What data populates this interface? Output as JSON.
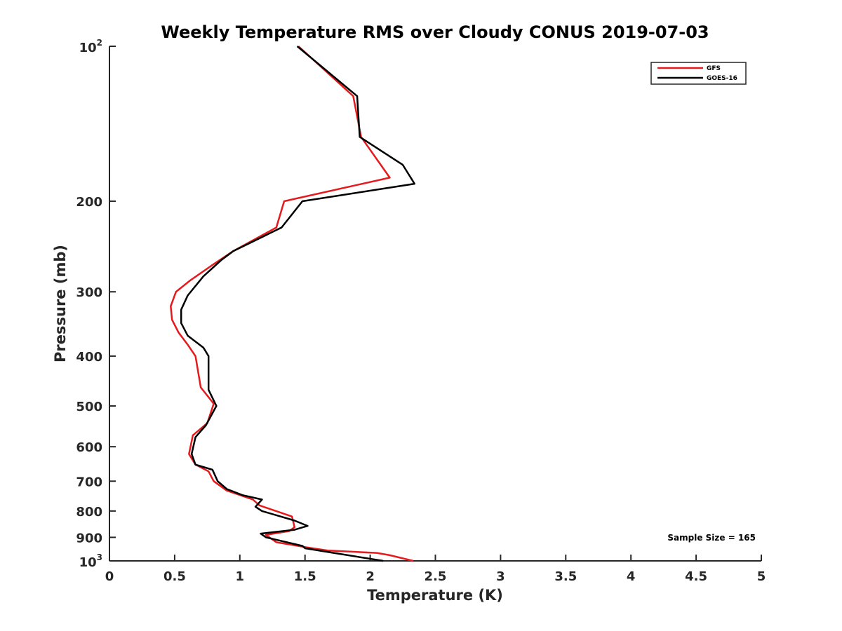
{
  "chart_data": {
    "type": "line",
    "title": "Weekly Temperature RMS over Cloudy CONUS 2019-07-03",
    "xlabel": "Temperature (K)",
    "ylabel": "Pressure (mb)",
    "xlim": [
      0,
      5
    ],
    "ylim": [
      100,
      1000
    ],
    "y_scale": "log",
    "y_reversed": true,
    "grid": false,
    "legend_position": "top-right",
    "x_ticks": [
      {
        "value": 0,
        "label": "0"
      },
      {
        "value": 0.5,
        "label": "0.5"
      },
      {
        "value": 1,
        "label": "1"
      },
      {
        "value": 1.5,
        "label": "1.5"
      },
      {
        "value": 2,
        "label": "2"
      },
      {
        "value": 2.5,
        "label": "2.5"
      },
      {
        "value": 3,
        "label": "3"
      },
      {
        "value": 3.5,
        "label": "3.5"
      },
      {
        "value": 4,
        "label": "4"
      },
      {
        "value": 4.5,
        "label": "4.5"
      },
      {
        "value": 5,
        "label": "5"
      }
    ],
    "y_ticks": [
      {
        "value": 100,
        "base": "10",
        "exp": "2"
      },
      {
        "value": 200,
        "base": "200",
        "exp": ""
      },
      {
        "value": 300,
        "base": "300",
        "exp": ""
      },
      {
        "value": 400,
        "base": "400",
        "exp": ""
      },
      {
        "value": 500,
        "base": "500",
        "exp": ""
      },
      {
        "value": 600,
        "base": "600",
        "exp": ""
      },
      {
        "value": 700,
        "base": "700",
        "exp": ""
      },
      {
        "value": 800,
        "base": "800",
        "exp": ""
      },
      {
        "value": 900,
        "base": "900",
        "exp": ""
      },
      {
        "value": 1000,
        "base": "10",
        "exp": "3"
      }
    ],
    "annotation": "Sample Size = 165",
    "series": [
      {
        "name": "GFS",
        "color": "#e41a1c",
        "points": [
          {
            "t": 1.45,
            "p": 100
          },
          {
            "t": 1.87,
            "p": 125
          },
          {
            "t": 1.93,
            "p": 150
          },
          {
            "t": 2.15,
            "p": 180
          },
          {
            "t": 1.34,
            "p": 200
          },
          {
            "t": 1.28,
            "p": 225
          },
          {
            "t": 0.95,
            "p": 250
          },
          {
            "t": 0.8,
            "p": 265
          },
          {
            "t": 0.62,
            "p": 285
          },
          {
            "t": 0.51,
            "p": 300
          },
          {
            "t": 0.47,
            "p": 320
          },
          {
            "t": 0.48,
            "p": 340
          },
          {
            "t": 0.53,
            "p": 360
          },
          {
            "t": 0.6,
            "p": 380
          },
          {
            "t": 0.66,
            "p": 400
          },
          {
            "t": 0.7,
            "p": 460
          },
          {
            "t": 0.8,
            "p": 495
          },
          {
            "t": 0.75,
            "p": 540
          },
          {
            "t": 0.64,
            "p": 570
          },
          {
            "t": 0.61,
            "p": 620
          },
          {
            "t": 0.66,
            "p": 650
          },
          {
            "t": 0.76,
            "p": 670
          },
          {
            "t": 0.8,
            "p": 700
          },
          {
            "t": 0.9,
            "p": 730
          },
          {
            "t": 1.1,
            "p": 760
          },
          {
            "t": 1.15,
            "p": 780
          },
          {
            "t": 1.4,
            "p": 820
          },
          {
            "t": 1.42,
            "p": 860
          },
          {
            "t": 1.38,
            "p": 875
          },
          {
            "t": 1.2,
            "p": 890
          },
          {
            "t": 1.28,
            "p": 920
          },
          {
            "t": 1.5,
            "p": 940
          },
          {
            "t": 1.68,
            "p": 955
          },
          {
            "t": 2.05,
            "p": 965
          },
          {
            "t": 2.15,
            "p": 975
          },
          {
            "t": 2.33,
            "p": 1000
          }
        ]
      },
      {
        "name": "GOES-16",
        "color": "#000000",
        "points": [
          {
            "t": 1.44,
            "p": 100
          },
          {
            "t": 1.9,
            "p": 125
          },
          {
            "t": 1.92,
            "p": 150
          },
          {
            "t": 2.25,
            "p": 170
          },
          {
            "t": 2.34,
            "p": 185
          },
          {
            "t": 1.48,
            "p": 200
          },
          {
            "t": 1.32,
            "p": 225
          },
          {
            "t": 0.95,
            "p": 250
          },
          {
            "t": 0.86,
            "p": 260
          },
          {
            "t": 0.72,
            "p": 280
          },
          {
            "t": 0.6,
            "p": 305
          },
          {
            "t": 0.55,
            "p": 325
          },
          {
            "t": 0.55,
            "p": 345
          },
          {
            "t": 0.6,
            "p": 365
          },
          {
            "t": 0.72,
            "p": 385
          },
          {
            "t": 0.76,
            "p": 400
          },
          {
            "t": 0.76,
            "p": 440
          },
          {
            "t": 0.76,
            "p": 465
          },
          {
            "t": 0.82,
            "p": 500
          },
          {
            "t": 0.74,
            "p": 545
          },
          {
            "t": 0.66,
            "p": 575
          },
          {
            "t": 0.63,
            "p": 620
          },
          {
            "t": 0.66,
            "p": 650
          },
          {
            "t": 0.79,
            "p": 665
          },
          {
            "t": 0.83,
            "p": 700
          },
          {
            "t": 0.9,
            "p": 725
          },
          {
            "t": 1.02,
            "p": 745
          },
          {
            "t": 1.17,
            "p": 760
          },
          {
            "t": 1.12,
            "p": 785
          },
          {
            "t": 1.17,
            "p": 800
          },
          {
            "t": 1.42,
            "p": 835
          },
          {
            "t": 1.52,
            "p": 855
          },
          {
            "t": 1.42,
            "p": 870
          },
          {
            "t": 1.16,
            "p": 885
          },
          {
            "t": 1.2,
            "p": 900
          },
          {
            "t": 1.48,
            "p": 935
          },
          {
            "t": 1.5,
            "p": 945
          },
          {
            "t": 1.72,
            "p": 965
          },
          {
            "t": 2.1,
            "p": 1000
          }
        ]
      }
    ]
  }
}
